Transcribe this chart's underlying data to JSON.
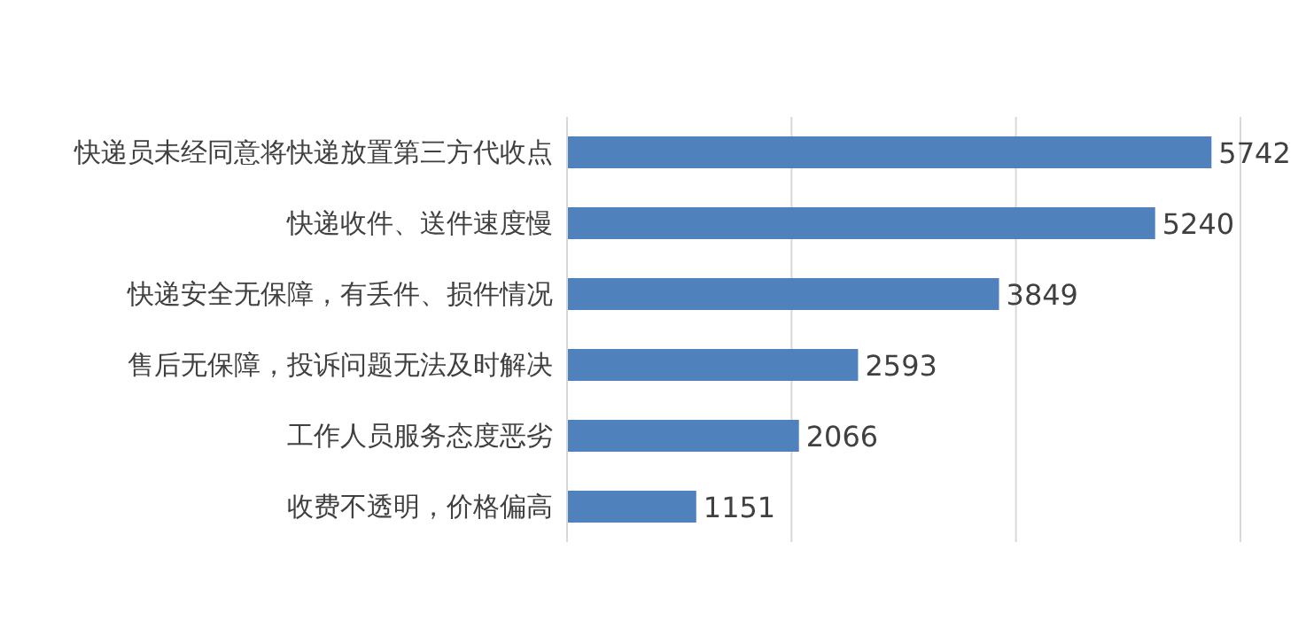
{
  "chart_data": {
    "type": "bar",
    "orientation": "horizontal",
    "categories": [
      "快递员未经同意将快递放置第三方代收点",
      "快递收件、送件速度慢",
      "快递安全无保障，有丢件、损件情况",
      "售后无保障，投诉问题无法及时解决",
      "工作人员服务态度恶劣",
      "收费不透明，价格偏高"
    ],
    "values": [
      5742,
      5240,
      3849,
      2593,
      2066,
      1151
    ],
    "color": "#4f81bd",
    "data_labels": true,
    "grid": "x",
    "xlim": [
      0,
      6000
    ],
    "xticks": [
      {
        "value": 0,
        "label": null
      },
      {
        "value": 2000,
        "label": null
      },
      {
        "value": 4000,
        "label": null
      },
      {
        "value": 6000,
        "label": null
      }
    ],
    "tick_labels": "y"
  }
}
